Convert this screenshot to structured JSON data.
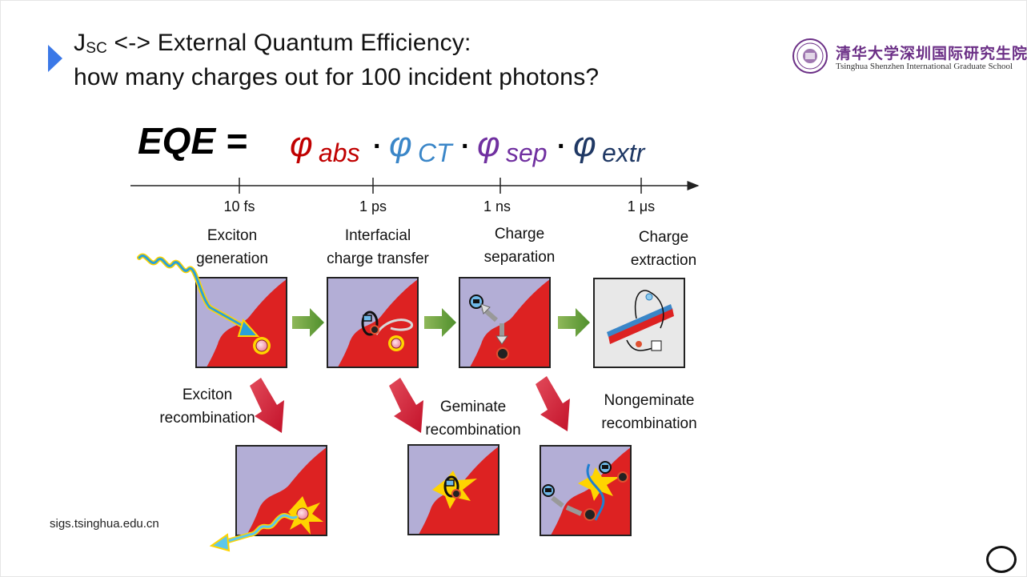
{
  "slide": {
    "title_line1_prefix": "J",
    "title_line1_sub": "SC",
    "title_line1_rest": " <-> External Quantum Efficiency:",
    "title_line2": "how many charges out for 100 incident photons?",
    "url": "sigs.tsinghua.edu.cn"
  },
  "logo": {
    "chinese": "清华大学深圳国际研究生院",
    "english": "Tsinghua Shenzhen International Graduate School"
  },
  "equation": {
    "lhs": "EQE =",
    "phi": "φ",
    "dot": "·",
    "terms": [
      {
        "sub": "abs",
        "color": "#c00000"
      },
      {
        "sub": "CT",
        "color": "#3a86c8"
      },
      {
        "sub": "sep",
        "color": "#7030a0"
      },
      {
        "sub": "extr",
        "color": "#1f3864"
      }
    ]
  },
  "timeline": {
    "ticks": [
      "10 fs",
      "1 ps",
      "1 ns",
      "1 μs"
    ]
  },
  "stages": [
    {
      "line1": "Exciton",
      "line2": "generation"
    },
    {
      "line1": "Interfacial",
      "line2": "charge transfer"
    },
    {
      "line1": "Charge",
      "line2": "separation"
    },
    {
      "line1": "Charge",
      "line2": "extraction"
    }
  ],
  "losses": [
    {
      "line1": "Exciton",
      "line2": "recombination"
    },
    {
      "line1": "Geminate",
      "line2": "recombination"
    },
    {
      "line1": "Nongeminate",
      "line2": "recombination"
    }
  ],
  "colors": {
    "donor": "#b3aed6",
    "acceptor": "#dd2222",
    "photon": "#2aa0d8",
    "arrow_green": "#6aa43a",
    "arrow_red": "#d91e36",
    "title_marker": "#3b78e7"
  }
}
